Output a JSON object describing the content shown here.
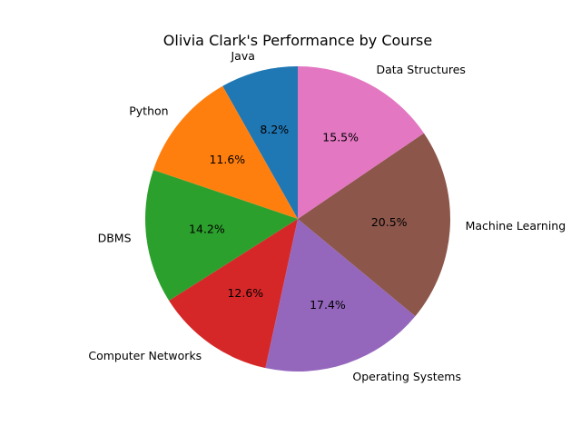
{
  "chart_data": {
    "type": "pie",
    "title": "Olivia Clark's Performance by Course",
    "start_angle_deg": 90,
    "direction": "counterclockwise",
    "slices": [
      {
        "label": "Java",
        "value": 8.2,
        "pct_label": "8.2%",
        "color": "#1f77b4"
      },
      {
        "label": "Python",
        "value": 11.6,
        "pct_label": "11.6%",
        "color": "#ff7f0e"
      },
      {
        "label": "DBMS",
        "value": 14.2,
        "pct_label": "14.2%",
        "color": "#2ca02c"
      },
      {
        "label": "Computer Networks",
        "value": 12.6,
        "pct_label": "12.6%",
        "color": "#d62728"
      },
      {
        "label": "Operating Systems",
        "value": 17.4,
        "pct_label": "17.4%",
        "color": "#9467bd"
      },
      {
        "label": "Machine Learning",
        "value": 20.5,
        "pct_label": "20.5%",
        "color": "#8c564b"
      },
      {
        "label": "Data Structures",
        "value": 15.5,
        "pct_label": "15.5%",
        "color": "#e377c2"
      }
    ]
  }
}
